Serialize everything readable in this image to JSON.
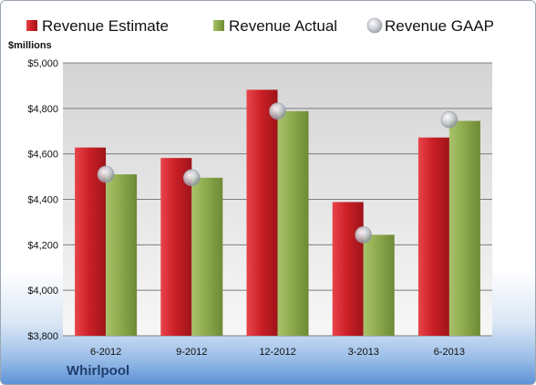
{
  "colors": {
    "estimate": "#cc2027",
    "actual": "#8eab4e",
    "gaap": "#c3c7ce"
  },
  "company": "Whirlpool",
  "chart_data": {
    "type": "bar",
    "unit_label": "$millions",
    "categories": [
      "6-2012",
      "9-2012",
      "12-2012",
      "3-2013",
      "6-2013"
    ],
    "series": [
      {
        "name": "Revenue Estimate",
        "kind": "bar",
        "values": [
          4628,
          4582,
          4882,
          4388,
          4672
        ]
      },
      {
        "name": "Revenue Actual",
        "kind": "bar",
        "values": [
          4510,
          4495,
          4788,
          4244,
          4745
        ]
      },
      {
        "name": "Revenue GAAP",
        "kind": "marker",
        "values": [
          4510,
          4495,
          4788,
          4244,
          4750
        ]
      }
    ],
    "ylim": [
      3800,
      5000
    ],
    "yticks": [
      "$3,800",
      "$4,000",
      "$4,200",
      "$4,400",
      "$4,600",
      "$4,800",
      "$5,000"
    ],
    "ytick_values": [
      3800,
      4000,
      4200,
      4400,
      4600,
      4800,
      5000
    ],
    "grid": true,
    "legend_position": "top"
  }
}
